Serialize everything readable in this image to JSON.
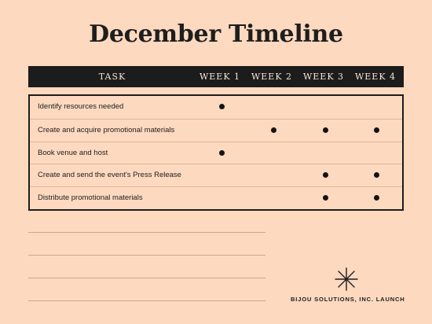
{
  "title": "December Timeline",
  "table": {
    "columns": [
      "TASK",
      "WEEK 1",
      "WEEK 2",
      "WEEK 3",
      "WEEK 4"
    ],
    "rows": [
      {
        "task": "Identify resources needed",
        "weeks": [
          true,
          false,
          false,
          false
        ]
      },
      {
        "task": "Create and acquire promotional materials",
        "weeks": [
          false,
          true,
          true,
          true
        ]
      },
      {
        "task": "Book venue and host",
        "weeks": [
          true,
          false,
          false,
          false
        ]
      },
      {
        "task": "Create and send the event's Press Release",
        "weeks": [
          false,
          false,
          true,
          true
        ]
      },
      {
        "task": "Distribute promotional materials",
        "weeks": [
          false,
          false,
          true,
          true
        ]
      }
    ]
  },
  "notes": {
    "line_count": 4
  },
  "footer": {
    "logo_icon": "sparkle-star-icon",
    "brand": "BIJOU SOLUTIONS, INC. LAUNCH"
  },
  "colors": {
    "background": "#fdd9bf",
    "header_bar": "#1c1c1c",
    "header_text": "#f7e6d6",
    "dot": "#141414"
  }
}
